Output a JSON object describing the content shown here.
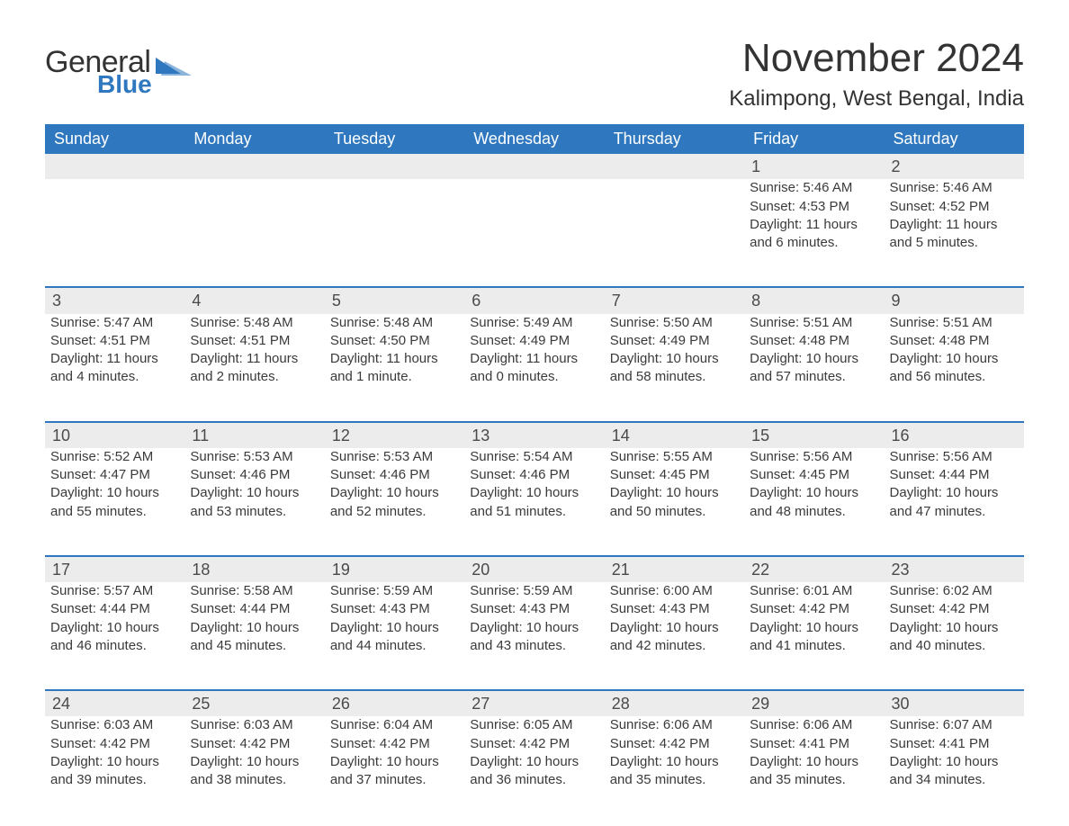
{
  "brand": {
    "general": "General",
    "blue": "Blue",
    "accent_color": "#2f78bf"
  },
  "title": "November 2024",
  "location": "Kalimpong, West Bengal, India",
  "colors": {
    "header_bg": "#2f78bf",
    "header_text": "#ffffff",
    "daynum_bg": "#ececec",
    "divider": "#2f78bf",
    "body_text": "#3a3a3a"
  },
  "weekdays": [
    "Sunday",
    "Monday",
    "Tuesday",
    "Wednesday",
    "Thursday",
    "Friday",
    "Saturday"
  ],
  "weeks": [
    [
      null,
      null,
      null,
      null,
      null,
      {
        "n": "1",
        "sr": "5:46 AM",
        "ss": "4:53 PM",
        "dl": "11 hours and 6 minutes."
      },
      {
        "n": "2",
        "sr": "5:46 AM",
        "ss": "4:52 PM",
        "dl": "11 hours and 5 minutes."
      }
    ],
    [
      {
        "n": "3",
        "sr": "5:47 AM",
        "ss": "4:51 PM",
        "dl": "11 hours and 4 minutes."
      },
      {
        "n": "4",
        "sr": "5:48 AM",
        "ss": "4:51 PM",
        "dl": "11 hours and 2 minutes."
      },
      {
        "n": "5",
        "sr": "5:48 AM",
        "ss": "4:50 PM",
        "dl": "11 hours and 1 minute."
      },
      {
        "n": "6",
        "sr": "5:49 AM",
        "ss": "4:49 PM",
        "dl": "11 hours and 0 minutes."
      },
      {
        "n": "7",
        "sr": "5:50 AM",
        "ss": "4:49 PM",
        "dl": "10 hours and 58 minutes."
      },
      {
        "n": "8",
        "sr": "5:51 AM",
        "ss": "4:48 PM",
        "dl": "10 hours and 57 minutes."
      },
      {
        "n": "9",
        "sr": "5:51 AM",
        "ss": "4:48 PM",
        "dl": "10 hours and 56 minutes."
      }
    ],
    [
      {
        "n": "10",
        "sr": "5:52 AM",
        "ss": "4:47 PM",
        "dl": "10 hours and 55 minutes."
      },
      {
        "n": "11",
        "sr": "5:53 AM",
        "ss": "4:46 PM",
        "dl": "10 hours and 53 minutes."
      },
      {
        "n": "12",
        "sr": "5:53 AM",
        "ss": "4:46 PM",
        "dl": "10 hours and 52 minutes."
      },
      {
        "n": "13",
        "sr": "5:54 AM",
        "ss": "4:46 PM",
        "dl": "10 hours and 51 minutes."
      },
      {
        "n": "14",
        "sr": "5:55 AM",
        "ss": "4:45 PM",
        "dl": "10 hours and 50 minutes."
      },
      {
        "n": "15",
        "sr": "5:56 AM",
        "ss": "4:45 PM",
        "dl": "10 hours and 48 minutes."
      },
      {
        "n": "16",
        "sr": "5:56 AM",
        "ss": "4:44 PM",
        "dl": "10 hours and 47 minutes."
      }
    ],
    [
      {
        "n": "17",
        "sr": "5:57 AM",
        "ss": "4:44 PM",
        "dl": "10 hours and 46 minutes."
      },
      {
        "n": "18",
        "sr": "5:58 AM",
        "ss": "4:44 PM",
        "dl": "10 hours and 45 minutes."
      },
      {
        "n": "19",
        "sr": "5:59 AM",
        "ss": "4:43 PM",
        "dl": "10 hours and 44 minutes."
      },
      {
        "n": "20",
        "sr": "5:59 AM",
        "ss": "4:43 PM",
        "dl": "10 hours and 43 minutes."
      },
      {
        "n": "21",
        "sr": "6:00 AM",
        "ss": "4:43 PM",
        "dl": "10 hours and 42 minutes."
      },
      {
        "n": "22",
        "sr": "6:01 AM",
        "ss": "4:42 PM",
        "dl": "10 hours and 41 minutes."
      },
      {
        "n": "23",
        "sr": "6:02 AM",
        "ss": "4:42 PM",
        "dl": "10 hours and 40 minutes."
      }
    ],
    [
      {
        "n": "24",
        "sr": "6:03 AM",
        "ss": "4:42 PM",
        "dl": "10 hours and 39 minutes."
      },
      {
        "n": "25",
        "sr": "6:03 AM",
        "ss": "4:42 PM",
        "dl": "10 hours and 38 minutes."
      },
      {
        "n": "26",
        "sr": "6:04 AM",
        "ss": "4:42 PM",
        "dl": "10 hours and 37 minutes."
      },
      {
        "n": "27",
        "sr": "6:05 AM",
        "ss": "4:42 PM",
        "dl": "10 hours and 36 minutes."
      },
      {
        "n": "28",
        "sr": "6:06 AM",
        "ss": "4:42 PM",
        "dl": "10 hours and 35 minutes."
      },
      {
        "n": "29",
        "sr": "6:06 AM",
        "ss": "4:41 PM",
        "dl": "10 hours and 35 minutes."
      },
      {
        "n": "30",
        "sr": "6:07 AM",
        "ss": "4:41 PM",
        "dl": "10 hours and 34 minutes."
      }
    ]
  ],
  "labels": {
    "sunrise": "Sunrise: ",
    "sunset": "Sunset: ",
    "daylight": "Daylight: "
  }
}
